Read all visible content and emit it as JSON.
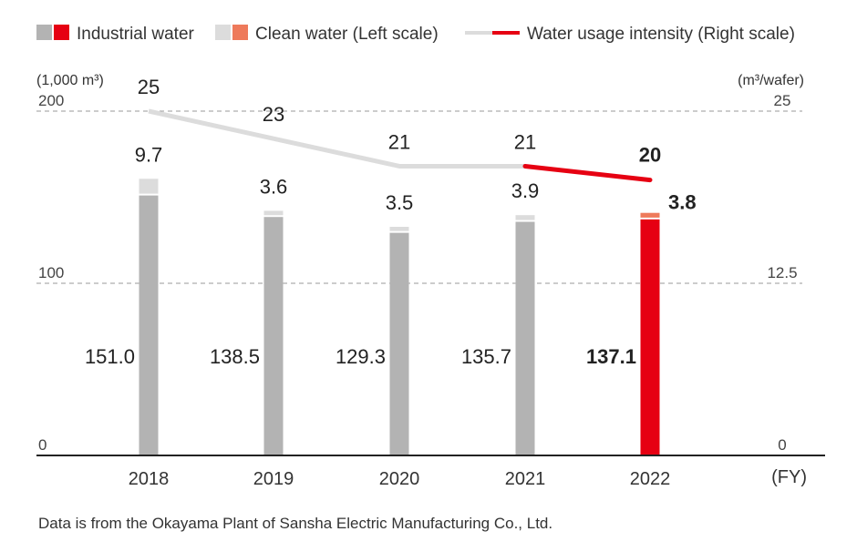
{
  "legend": {
    "industrial": "Industrial water",
    "clean": "Clean water (Left scale)",
    "intensity": "Water usage intensity (Right scale)"
  },
  "colors": {
    "industrial_gray": "#b3b3b3",
    "clean_gray": "#dcdcdc",
    "industrial_red": "#e60012",
    "clean_orange": "#ee7a5b",
    "line_gray": "#dcdcdc",
    "line_red": "#e60012",
    "grid": "#9a9a9a"
  },
  "chart_data": {
    "type": "bar",
    "title": "",
    "left_unit": "(1,000 m³)",
    "right_unit": "(m³/wafer)",
    "x_unit": "(FY)",
    "categories": [
      "2018",
      "2019",
      "2020",
      "2021",
      "2022"
    ],
    "ylim_left": [
      0,
      200
    ],
    "ylim_right": [
      0,
      25
    ],
    "left_ticks": [
      "0",
      "100",
      "200"
    ],
    "right_ticks": [
      "0",
      "12.5",
      "25"
    ],
    "series": [
      {
        "name": "Industrial water",
        "stacked": true,
        "axis": "left",
        "values": [
          151.0,
          138.5,
          129.3,
          135.7,
          137.1
        ],
        "labels": [
          "151.0",
          "138.5",
          "129.3",
          "135.7",
          "137.1"
        ]
      },
      {
        "name": "Clean water",
        "stacked": true,
        "axis": "left",
        "values": [
          9.7,
          3.6,
          3.5,
          3.9,
          3.8
        ],
        "labels": [
          "9.7",
          "3.6",
          "3.5",
          "3.9",
          "3.8"
        ]
      },
      {
        "name": "Water usage intensity",
        "type": "line",
        "axis": "right",
        "values": [
          25,
          23,
          21,
          21,
          20
        ],
        "labels": [
          "25",
          "23",
          "21",
          "21",
          "20"
        ]
      }
    ],
    "highlight_index": 4
  },
  "footnote": "Data is from the Okayama Plant of Sansha Electric Manufacturing Co., Ltd."
}
